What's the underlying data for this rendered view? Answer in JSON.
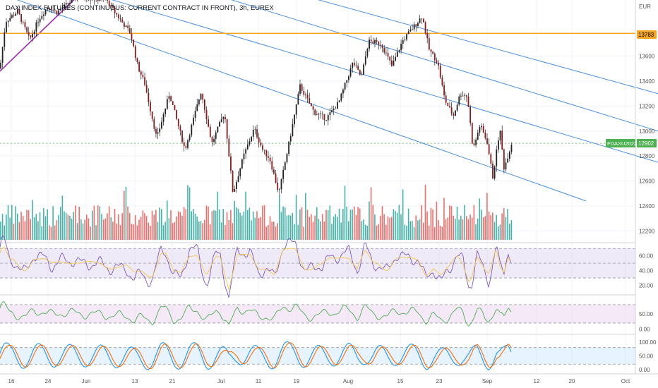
{
  "header": {
    "symbol_text": "DAX INDEX FUTURES (CONTINUOUS: CURRENT CONTRACT IN FRONT), 3h, EUREX"
  },
  "price_axis": {
    "currency": "EUR",
    "ticks": [
      "13600",
      "13400",
      "13200",
      "13000",
      "12800",
      "12600",
      "12400",
      "12200"
    ]
  },
  "time_axis": {
    "labels": [
      "16",
      "24",
      "Jun",
      "13",
      "21",
      "Jul",
      "11",
      "19",
      "Aug",
      "15",
      "23",
      "Sep",
      "12",
      "20",
      "Oct"
    ]
  },
  "badges": {
    "level_value": "13783",
    "ticker_name": "FDAXU2022",
    "ticker_price": "12902"
  },
  "rsi_panel": {
    "ticks": [
      "60.00",
      "40.00",
      "20.00"
    ]
  },
  "mfi_panel": {
    "ticks": [
      "50.00",
      "0.00"
    ]
  },
  "stoch_panel": {
    "ticks": [
      "100.00",
      "50.00",
      "0.00"
    ]
  },
  "colors": {
    "up": "#26a69a",
    "down": "#ef5350",
    "candle": "#222222",
    "channel": "#4a90e2",
    "level": "#f5a623",
    "rsi": "#7e57c2",
    "ma": "#f2c94c",
    "mfi": "#4caf50",
    "stoch_k": "#2196f3",
    "stoch_d": "#ff6d00",
    "ticker_badge": "#4caf50"
  },
  "chart_data": {
    "type": "candlestick",
    "price_range": [
      12100,
      14050
    ],
    "level": 13783,
    "last_price": 12902,
    "price_path": [
      [
        0,
        13500
      ],
      [
        8,
        13880
      ],
      [
        25,
        13960
      ],
      [
        42,
        13730
      ],
      [
        55,
        13900
      ],
      [
        68,
        14000
      ],
      [
        80,
        13950
      ],
      [
        110,
        14080
      ],
      [
        150,
        14050
      ],
      [
        185,
        13780
      ],
      [
        195,
        13520
      ],
      [
        205,
        13380
      ],
      [
        222,
        12940
      ],
      [
        240,
        13300
      ],
      [
        262,
        12850
      ],
      [
        285,
        13320
      ],
      [
        300,
        12900
      ],
      [
        318,
        13150
      ],
      [
        330,
        12500
      ],
      [
        345,
        12800
      ],
      [
        360,
        13020
      ],
      [
        372,
        12850
      ],
      [
        382,
        12780
      ],
      [
        395,
        12500
      ],
      [
        412,
        12980
      ],
      [
        425,
        13360
      ],
      [
        445,
        13150
      ],
      [
        462,
        13100
      ],
      [
        480,
        13230
      ],
      [
        500,
        13550
      ],
      [
        512,
        13430
      ],
      [
        522,
        13720
      ],
      [
        540,
        13700
      ],
      [
        555,
        13520
      ],
      [
        570,
        13720
      ],
      [
        585,
        13830
      ],
      [
        598,
        13920
      ],
      [
        608,
        13650
      ],
      [
        620,
        13550
      ],
      [
        630,
        13250
      ],
      [
        642,
        13120
      ],
      [
        652,
        13300
      ],
      [
        662,
        13280
      ],
      [
        670,
        12850
      ],
      [
        680,
        13050
      ],
      [
        690,
        12910
      ],
      [
        698,
        12630
      ],
      [
        708,
        13020
      ],
      [
        714,
        12700
      ],
      [
        725,
        12910
      ]
    ],
    "channel_lines": [
      {
        "from": [
          0,
          14100
        ],
        "to": [
          830,
          12440
        ]
      },
      {
        "from": [
          130,
          14100
        ],
        "to": [
          932,
          12750
        ]
      },
      {
        "from": [
          300,
          14100
        ],
        "to": [
          932,
          13000
        ]
      },
      {
        "from": [
          420,
          14100
        ],
        "to": [
          932,
          13300
        ]
      }
    ],
    "trend_line": {
      "from": [
        0,
        13480
      ],
      "to": [
        110,
        14080
      ]
    },
    "rsi_levels": [
      70,
      50,
      30
    ],
    "rsi_range": [
      10,
      75
    ],
    "mfi_levels": [
      80,
      20
    ],
    "mfi_range": [
      -10,
      105
    ],
    "stoch_levels": [
      80,
      20
    ],
    "stoch_range": [
      -10,
      120
    ]
  }
}
